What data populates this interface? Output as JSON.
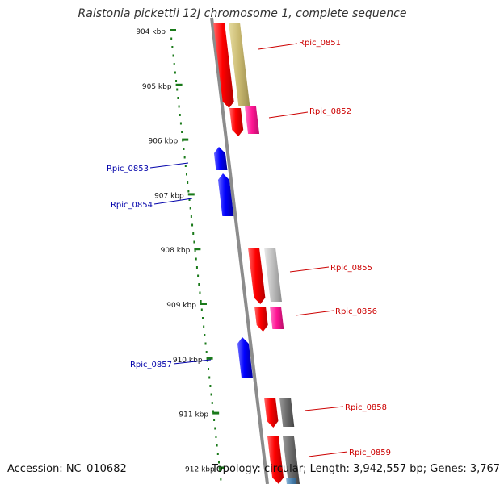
{
  "title": "Ralstonia pickettii 12J chromosome 1, complete sequence",
  "accession": "Accession: NC_010682",
  "summary": "Topology: circular; Length: 3,942,557 bp; Genes: 3,767",
  "colors": {
    "background": "#ffffff",
    "backbone": "#8c8c8c",
    "ruler": "#1a7a1a",
    "forward_label": "#cc0000",
    "reverse_label": "#0000aa",
    "gene_forward": "#ff0000",
    "gene_reverse": "#0000ff"
  },
  "ruler": {
    "unit": "kbp",
    "ticks": [
      "904 kbp",
      "905 kbp",
      "906 kbp",
      "907 kbp",
      "908 kbp",
      "909 kbp",
      "910 kbp",
      "911 kbp",
      "912 kbp"
    ]
  },
  "genes": [
    {
      "id": "Rpic_0851",
      "strand": "forward"
    },
    {
      "id": "Rpic_0852",
      "strand": "forward"
    },
    {
      "id": "Rpic_0853",
      "strand": "reverse"
    },
    {
      "id": "Rpic_0854",
      "strand": "reverse"
    },
    {
      "id": "Rpic_0855",
      "strand": "forward"
    },
    {
      "id": "Rpic_0856",
      "strand": "forward"
    },
    {
      "id": "Rpic_0857",
      "strand": "reverse"
    },
    {
      "id": "Rpic_0858",
      "strand": "forward"
    },
    {
      "id": "Rpic_0859",
      "strand": "forward"
    }
  ]
}
